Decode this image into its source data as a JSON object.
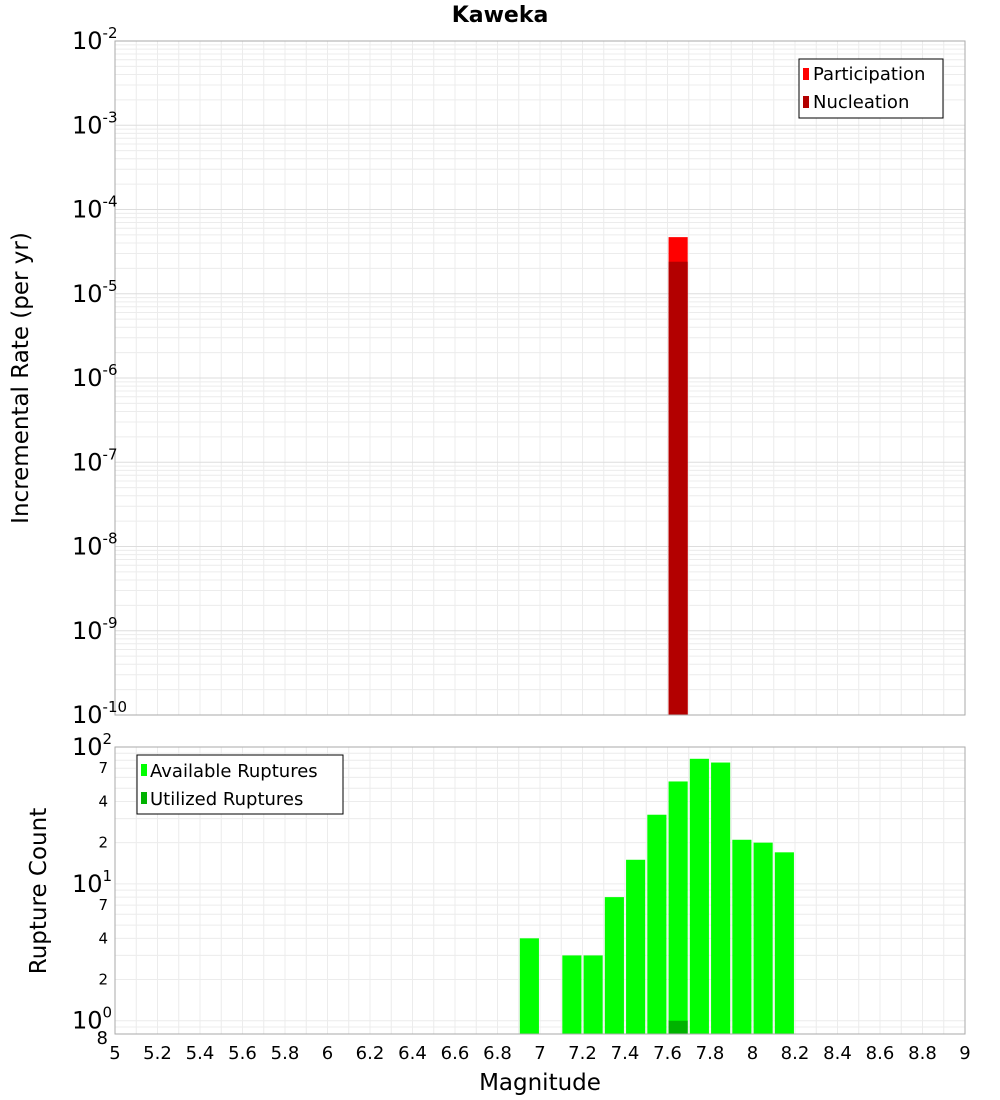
{
  "chart_data": [
    {
      "type": "bar",
      "title": "Kaweka",
      "xlabel": "",
      "ylabel": "Incremental Rate (per yr)",
      "yscale": "log",
      "xlim": [
        5,
        9
      ],
      "ylim": [
        1e-10,
        0.01
      ],
      "y_major_ticks": [
        {
          "base": "10",
          "exp": "-10",
          "value": 1e-10
        },
        {
          "base": "10",
          "exp": "-9",
          "value": 1e-09
        },
        {
          "base": "10",
          "exp": "-8",
          "value": 1e-08
        },
        {
          "base": "10",
          "exp": "-7",
          "value": 1e-07
        },
        {
          "base": "10",
          "exp": "-6",
          "value": 1e-06
        },
        {
          "base": "10",
          "exp": "-5",
          "value": 1e-05
        },
        {
          "base": "10",
          "exp": "-4",
          "value": 0.0001
        },
        {
          "base": "10",
          "exp": "-3",
          "value": 0.001
        },
        {
          "base": "10",
          "exp": "-2",
          "value": 0.01
        }
      ],
      "bar_width": 0.09,
      "legend_position": "top-right",
      "grid": true,
      "series": [
        {
          "name": "Participation",
          "color": "#ff0000",
          "points": [
            {
              "x": 7.65,
              "y": 4.7e-05
            }
          ]
        },
        {
          "name": "Nucleation",
          "color": "#b30000",
          "points": [
            {
              "x": 7.65,
              "y": 2.4e-05
            }
          ]
        }
      ]
    },
    {
      "type": "bar",
      "title": "",
      "xlabel": "Magnitude",
      "ylabel": "Rupture Count",
      "yscale": "log",
      "xlim": [
        5,
        9
      ],
      "ylim": [
        0.8,
        100
      ],
      "x_ticks": [
        "5",
        "5.2",
        "5.4",
        "5.6",
        "5.8",
        "6",
        "6.2",
        "6.4",
        "6.6",
        "6.8",
        "7",
        "7.2",
        "7.4",
        "7.6",
        "7.8",
        "8",
        "8.2",
        "8.4",
        "8.6",
        "8.8",
        "9"
      ],
      "y_major_ticks": [
        {
          "base": "10",
          "exp": "0",
          "value": 1
        },
        {
          "base": "10",
          "exp": "1",
          "value": 10
        },
        {
          "base": "10",
          "exp": "2",
          "value": 100
        }
      ],
      "y_minor_ticks": [
        {
          "label": "8",
          "value": 0.8
        },
        {
          "label": "2",
          "value": 2
        },
        {
          "label": "4",
          "value": 4
        },
        {
          "label": "7",
          "value": 7
        },
        {
          "label": "2",
          "value": 20
        },
        {
          "label": "4",
          "value": 40
        },
        {
          "label": "7",
          "value": 70
        }
      ],
      "bar_width": 0.09,
      "legend_position": "top-left",
      "grid": true,
      "series": [
        {
          "name": "Available Ruptures",
          "color": "#00ff00",
          "points": [
            {
              "x": 6.95,
              "y": 4
            },
            {
              "x": 7.15,
              "y": 3
            },
            {
              "x": 7.25,
              "y": 3
            },
            {
              "x": 7.35,
              "y": 8
            },
            {
              "x": 7.45,
              "y": 15
            },
            {
              "x": 7.55,
              "y": 32
            },
            {
              "x": 7.65,
              "y": 56
            },
            {
              "x": 7.75,
              "y": 82
            },
            {
              "x": 7.85,
              "y": 77
            },
            {
              "x": 7.95,
              "y": 21
            },
            {
              "x": 8.05,
              "y": 20
            },
            {
              "x": 8.15,
              "y": 17
            }
          ]
        },
        {
          "name": "Utilized Ruptures",
          "color": "#00b300",
          "points": [
            {
              "x": 7.65,
              "y": 1
            }
          ]
        }
      ]
    }
  ]
}
